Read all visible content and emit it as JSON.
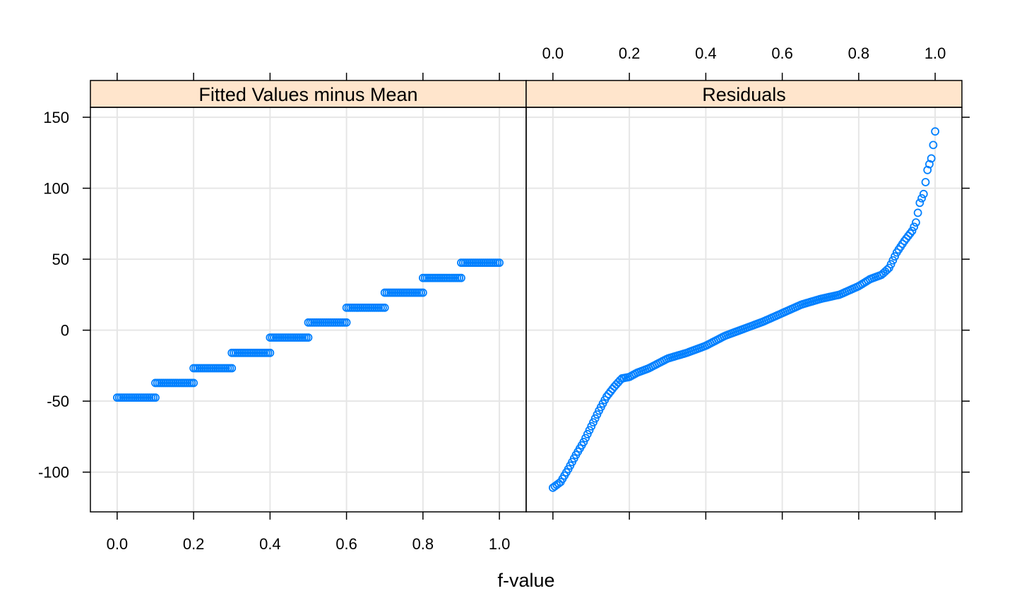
{
  "chart_data": {
    "type": "scatter",
    "xlabel": "f-value",
    "ylabel": "",
    "xlim": [
      -0.07,
      1.07
    ],
    "ylim": [
      -128,
      157
    ],
    "x_ticks": [
      0.0,
      0.2,
      0.4,
      0.6,
      0.8,
      1.0
    ],
    "x_tick_labels": [
      "0.0",
      "0.2",
      "0.4",
      "0.6",
      "0.8",
      "1.0"
    ],
    "y_ticks": [
      -100,
      -50,
      0,
      50,
      100,
      150
    ],
    "y_tick_labels": [
      "-100",
      "-50",
      "0",
      "50",
      "100",
      "150"
    ],
    "grid": true,
    "point_color": "#0080ff",
    "strip_color": "#ffe5cc",
    "panels": [
      {
        "name": "Fitted Values minus Mean",
        "steps": [
          {
            "x_from": 0.0,
            "x_to": 0.1,
            "y": -47.5
          },
          {
            "x_from": 0.1,
            "x_to": 0.2,
            "y": -37.2
          },
          {
            "x_from": 0.2,
            "x_to": 0.3,
            "y": -26.8
          },
          {
            "x_from": 0.3,
            "x_to": 0.4,
            "y": -16.0
          },
          {
            "x_from": 0.4,
            "x_to": 0.5,
            "y": -5.2
          },
          {
            "x_from": 0.5,
            "x_to": 0.6,
            "y": 5.4
          },
          {
            "x_from": 0.6,
            "x_to": 0.7,
            "y": 15.8
          },
          {
            "x_from": 0.7,
            "x_to": 0.8,
            "y": 26.4
          },
          {
            "x_from": 0.8,
            "x_to": 0.9,
            "y": 36.8
          },
          {
            "x_from": 0.9,
            "x_to": 1.0,
            "y": 47.5
          }
        ],
        "points_per_step": 20
      },
      {
        "name": "Residuals",
        "quantile_curve": [
          [
            0.0,
            -111
          ],
          [
            0.02,
            -107
          ],
          [
            0.04,
            -98
          ],
          [
            0.06,
            -88
          ],
          [
            0.08,
            -79
          ],
          [
            0.1,
            -68
          ],
          [
            0.12,
            -57
          ],
          [
            0.14,
            -47
          ],
          [
            0.16,
            -40
          ],
          [
            0.18,
            -34
          ],
          [
            0.2,
            -33
          ],
          [
            0.22,
            -30
          ],
          [
            0.25,
            -27
          ],
          [
            0.3,
            -20
          ],
          [
            0.35,
            -16
          ],
          [
            0.4,
            -11
          ],
          [
            0.45,
            -4
          ],
          [
            0.5,
            1
          ],
          [
            0.55,
            6
          ],
          [
            0.6,
            12
          ],
          [
            0.65,
            18
          ],
          [
            0.7,
            22
          ],
          [
            0.75,
            25
          ],
          [
            0.8,
            31
          ],
          [
            0.83,
            36
          ],
          [
            0.86,
            39
          ],
          [
            0.88,
            44
          ],
          [
            0.9,
            55
          ],
          [
            0.92,
            63
          ],
          [
            0.94,
            70
          ],
          [
            0.95,
            76
          ],
          [
            0.96,
            90
          ],
          [
            0.97,
            96
          ],
          [
            0.98,
            113
          ],
          [
            0.99,
            121
          ],
          [
            1.0,
            140
          ]
        ],
        "n_points": 200
      }
    ]
  }
}
